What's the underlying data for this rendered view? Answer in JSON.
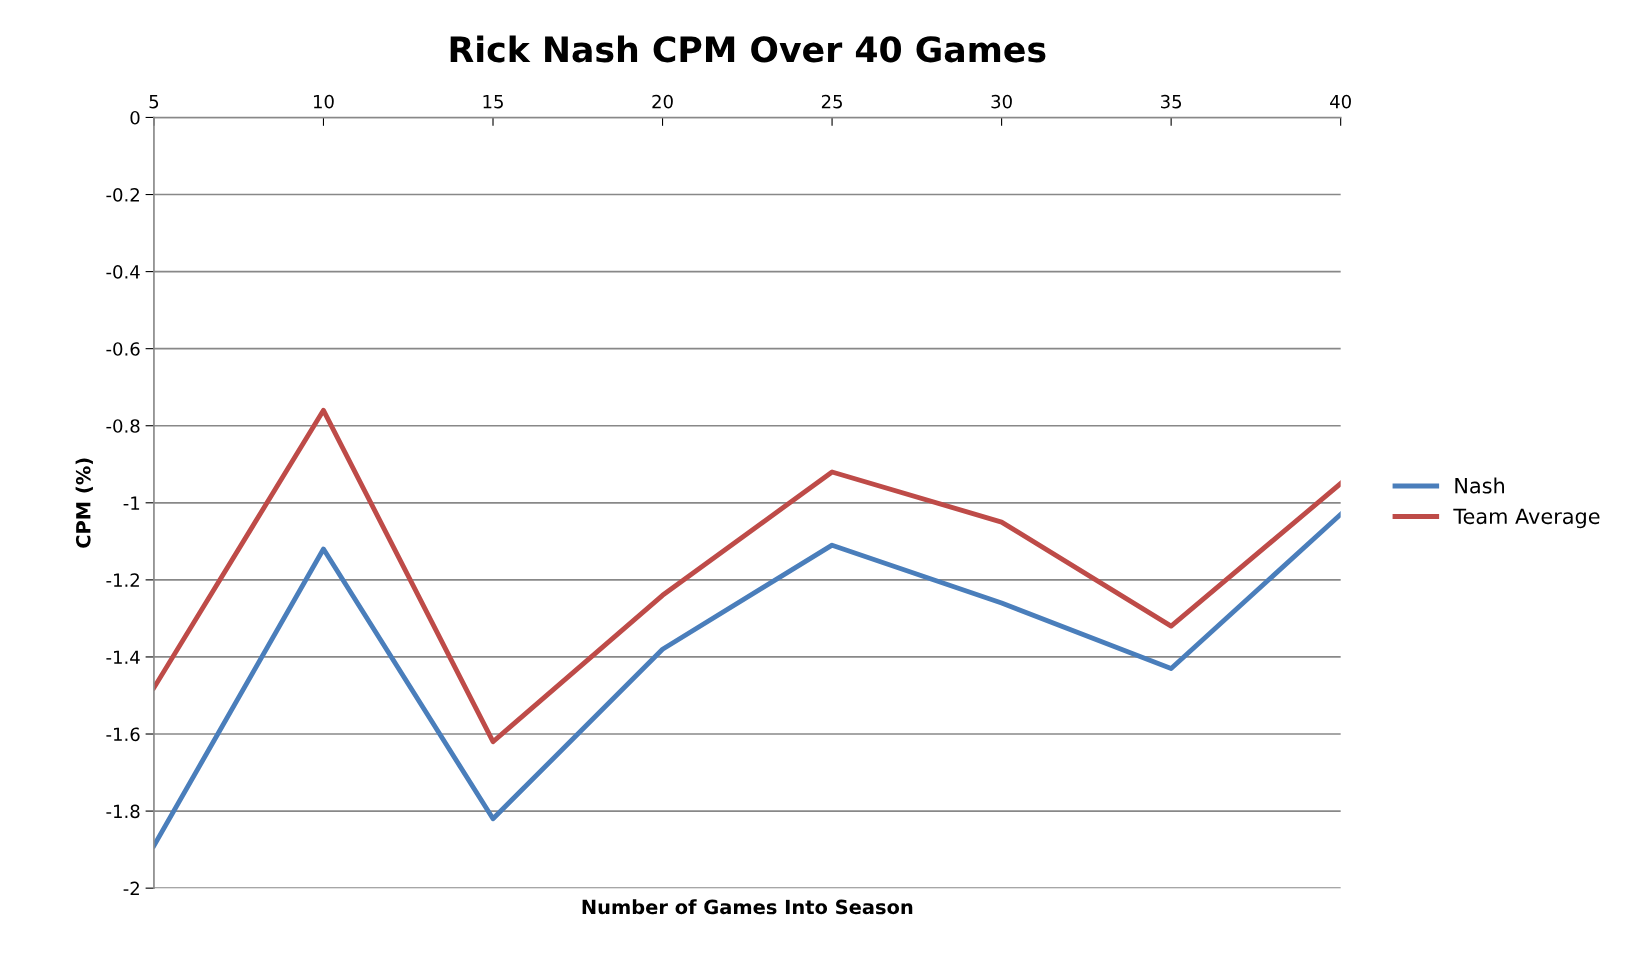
{
  "chart_data": {
    "type": "line",
    "title": "Rick Nash CPM Over 40 Games",
    "xlabel": "Number of Games Into Season",
    "ylabel": "CPM (%)",
    "categories": [
      "5",
      "10",
      "15",
      "20",
      "25",
      "30",
      "35",
      "40"
    ],
    "series": [
      {
        "name": "Nash",
        "color": "#4a7ebb",
        "values": [
          -1.89,
          -1.12,
          -1.82,
          -1.38,
          -1.11,
          -1.26,
          -1.43,
          -1.03
        ]
      },
      {
        "name": "Team Average",
        "color": "#be4b48",
        "values": [
          -1.48,
          -0.76,
          -1.62,
          -1.24,
          -0.92,
          -1.05,
          -1.32,
          -0.95
        ]
      }
    ],
    "ylim": [
      -2,
      0
    ],
    "yticks": [
      0,
      -0.2,
      -0.4,
      -0.6,
      -0.8,
      -1,
      -1.2,
      -1.4,
      -1.6,
      -1.8,
      -2
    ],
    "grid": "y",
    "legend": "right",
    "marker": "none",
    "line_style": "solid"
  }
}
